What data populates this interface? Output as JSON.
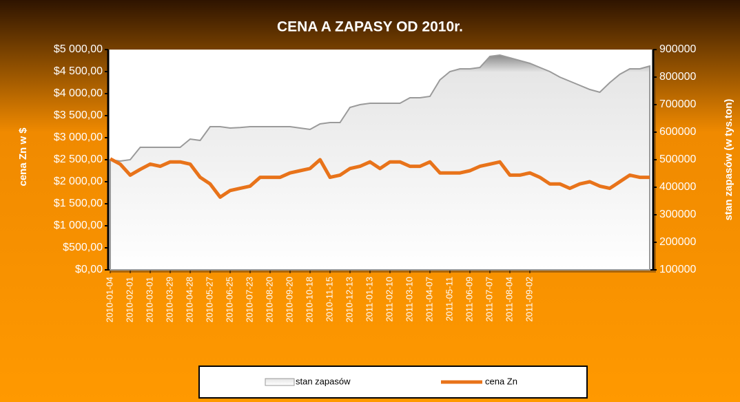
{
  "chart_data": {
    "type": "line",
    "title": "CENA A ZAPASY  OD 2010r.",
    "y_label": "cena Zn w $",
    "y2_label": "stan zapasów (w tys.ton)",
    "categories": [
      "2010-01-04",
      null,
      "2010-02-01",
      null,
      "2010-03-01",
      null,
      "2010-03-29",
      null,
      "2010-04-28",
      null,
      "2010-05-27",
      null,
      "2010-06-25",
      null,
      "2010-07-23",
      null,
      "2010-08-20",
      null,
      "2010-09-20",
      null,
      "2010-10-18",
      null,
      "2010-11-15",
      null,
      "2010-12-13",
      null,
      "2011-01-13",
      null,
      "2011-02-10",
      null,
      "2011-03-10",
      null,
      "2011-04-07",
      null,
      "2011-05-11",
      null,
      "2011-06-09",
      null,
      "2011-07-07",
      null,
      "2011-08-04",
      null,
      "2011-09-02",
      null,
      null,
      null,
      null,
      null,
      null,
      null,
      null,
      null,
      null,
      null,
      null
    ],
    "series": [
      {
        "name": "stan zapasów",
        "kind": "area",
        "axis": "y2",
        "color": "#9a9a9a",
        "values": [
          500000,
          495000,
          500000,
          545000,
          545000,
          545000,
          545000,
          545000,
          575000,
          570000,
          620000,
          620000,
          615000,
          617000,
          620000,
          620000,
          620000,
          620000,
          620000,
          615000,
          610000,
          630000,
          635000,
          635000,
          690000,
          700000,
          705000,
          705000,
          705000,
          705000,
          725000,
          725000,
          730000,
          790000,
          820000,
          830000,
          830000,
          835000,
          875000,
          880000,
          870000,
          860000,
          850000,
          835000,
          820000,
          800000,
          785000,
          770000,
          755000,
          745000,
          780000,
          810000,
          830000,
          830000,
          840000
        ]
      },
      {
        "name": "cena Zn",
        "kind": "line",
        "axis": "y",
        "color": "#e8731a",
        "values": [
          2520,
          2400,
          2150,
          2280,
          2400,
          2350,
          2450,
          2450,
          2400,
          2100,
          1950,
          1650,
          1800,
          1850,
          1900,
          2100,
          2100,
          2100,
          2200,
          2250,
          2300,
          2500,
          2100,
          2150,
          2300,
          2350,
          2450,
          2300,
          2450,
          2450,
          2350,
          2350,
          2450,
          2200,
          2200,
          2200,
          2250,
          2350,
          2400,
          2450,
          2150,
          2150,
          2200,
          2100,
          1950,
          1950,
          1850,
          1950,
          2000,
          1900,
          1850,
          2000,
          2150,
          2100,
          2100
        ]
      }
    ],
    "ylim": [
      0,
      5000
    ],
    "yticks": [
      {
        "value": 0,
        "label": "$0,00"
      },
      {
        "value": 500,
        "label": "$500,00"
      },
      {
        "value": 1000,
        "label": "$1 000,00"
      },
      {
        "value": 1500,
        "label": "$1 500,00"
      },
      {
        "value": 2000,
        "label": "$2 000,00"
      },
      {
        "value": 2500,
        "label": "$2 500,00"
      },
      {
        "value": 3000,
        "label": "$3 000,00"
      },
      {
        "value": 3500,
        "label": "$3 500,00"
      },
      {
        "value": 4000,
        "label": "$4 000,00"
      },
      {
        "value": 4500,
        "label": "$4 500,00"
      },
      {
        "value": 5000,
        "label": "$5 000,00"
      }
    ],
    "y2lim": [
      100000,
      900000
    ],
    "y2ticks": [
      100000,
      200000,
      300000,
      400000,
      500000,
      600000,
      700000,
      800000,
      900000
    ],
    "legend": "bottom"
  }
}
